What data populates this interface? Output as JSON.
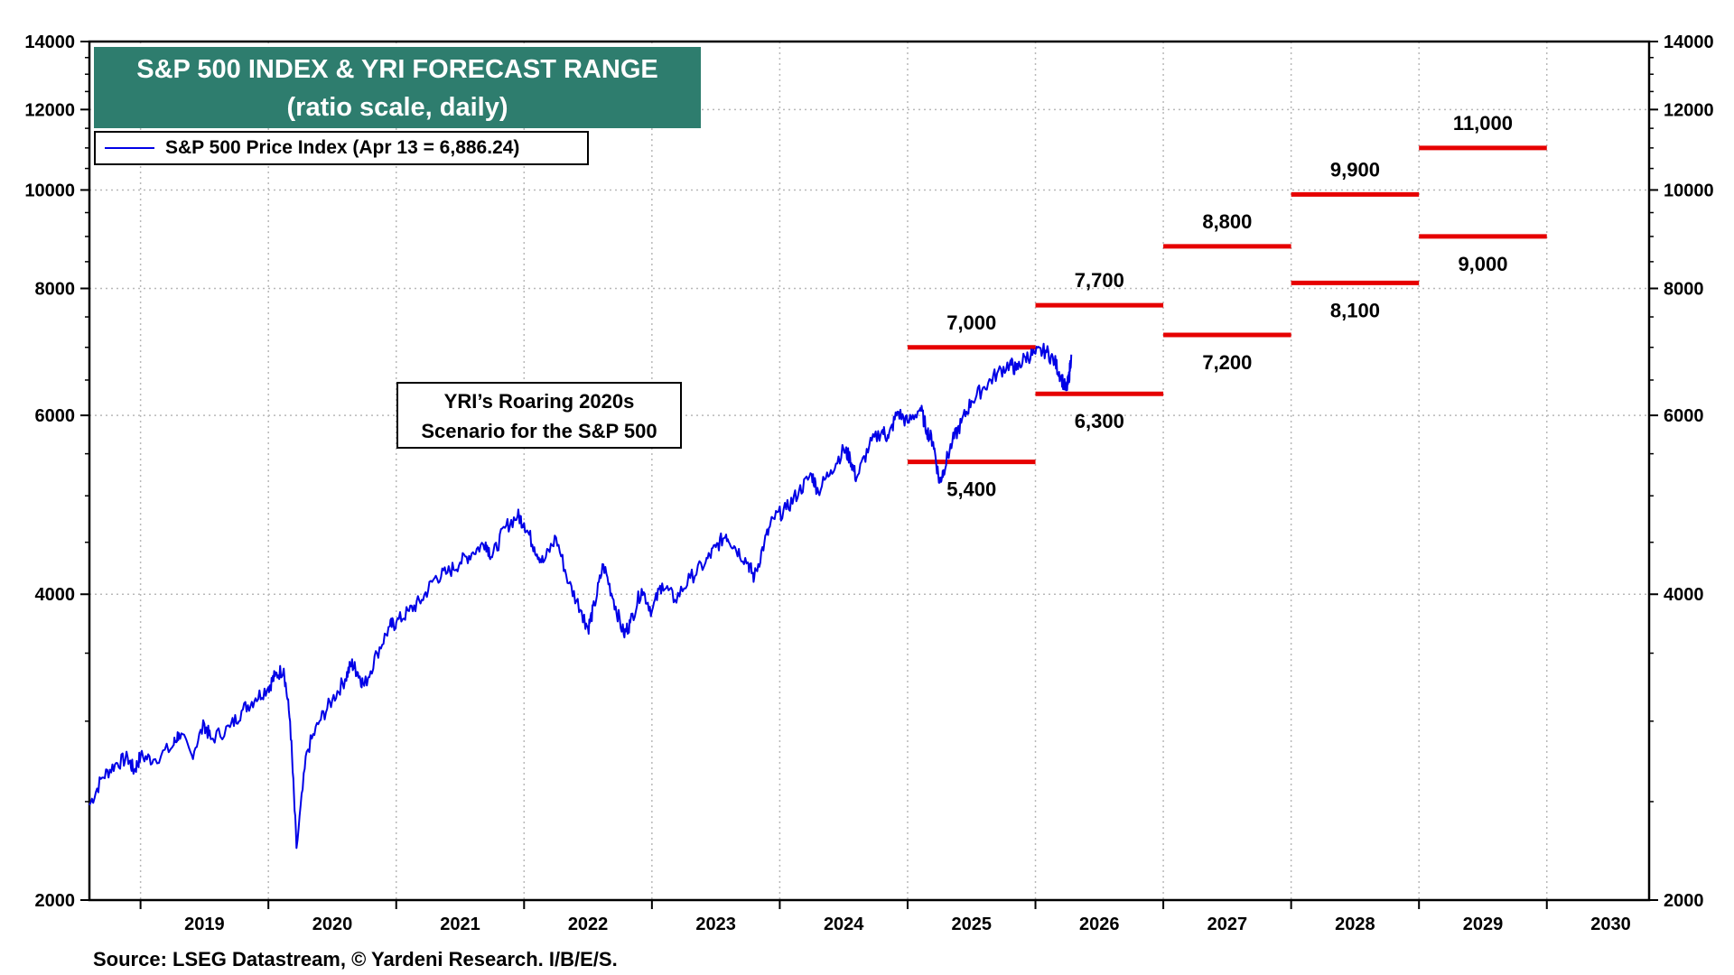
{
  "chart_data": {
    "type": "line",
    "title": "S&P 500 INDEX & YRI FORECAST RANGE",
    "subtitle": "(ratio scale, daily)",
    "legend": [
      {
        "name": "S&P 500 Price Index (Apr 13 = 6,886.24)",
        "color": "#0000e6"
      }
    ],
    "legend_position": "top-left",
    "y_scale": "log",
    "ylim": [
      2000,
      14000
    ],
    "y_ticks": [
      2000,
      4000,
      6000,
      8000,
      10000,
      12000,
      14000
    ],
    "y_tick_labels": [
      "2000",
      "4000",
      "6000",
      "8000",
      "10000",
      "12000",
      "14000"
    ],
    "xlim": [
      2018.6,
      2030.8
    ],
    "x_ticks": [
      2019,
      2020,
      2021,
      2022,
      2023,
      2024,
      2025,
      2026,
      2027,
      2028,
      2029,
      2030
    ],
    "x_tick_labels": [
      "2019",
      "2020",
      "2021",
      "2022",
      "2023",
      "2024",
      "2025",
      "2026",
      "2027",
      "2028",
      "2029",
      "2030"
    ],
    "grid": true,
    "series": [
      {
        "name": "S&P 500 Price Index",
        "color": "#0000e6",
        "points": [
          [
            2018.6,
            2480
          ],
          [
            2018.7,
            2640
          ],
          [
            2018.8,
            2720
          ],
          [
            2018.9,
            2760
          ],
          [
            2018.95,
            2680
          ],
          [
            2019.0,
            2770
          ],
          [
            2019.1,
            2750
          ],
          [
            2019.25,
            2830
          ],
          [
            2019.3,
            2920
          ],
          [
            2019.4,
            2780
          ],
          [
            2019.5,
            2980
          ],
          [
            2019.55,
            2880
          ],
          [
            2019.7,
            2960
          ],
          [
            2019.8,
            3080
          ],
          [
            2019.9,
            3160
          ],
          [
            2020.0,
            3240
          ],
          [
            2020.05,
            3320
          ],
          [
            2020.12,
            3380
          ],
          [
            2020.17,
            3000
          ],
          [
            2020.22,
            2250
          ],
          [
            2020.3,
            2800
          ],
          [
            2020.4,
            3000
          ],
          [
            2020.5,
            3150
          ],
          [
            2020.6,
            3300
          ],
          [
            2020.65,
            3420
          ],
          [
            2020.7,
            3350
          ],
          [
            2020.75,
            3250
          ],
          [
            2020.85,
            3500
          ],
          [
            2020.95,
            3720
          ],
          [
            2021.0,
            3750
          ],
          [
            2021.1,
            3850
          ],
          [
            2021.2,
            3950
          ],
          [
            2021.3,
            4150
          ],
          [
            2021.4,
            4200
          ],
          [
            2021.5,
            4300
          ],
          [
            2021.6,
            4400
          ],
          [
            2021.7,
            4500
          ],
          [
            2021.75,
            4350
          ],
          [
            2021.85,
            4650
          ],
          [
            2021.95,
            4780
          ],
          [
            2022.0,
            4700
          ],
          [
            2022.08,
            4450
          ],
          [
            2022.15,
            4300
          ],
          [
            2022.25,
            4550
          ],
          [
            2022.35,
            4100
          ],
          [
            2022.45,
            3850
          ],
          [
            2022.5,
            3700
          ],
          [
            2022.55,
            3900
          ],
          [
            2022.62,
            4280
          ],
          [
            2022.7,
            3950
          ],
          [
            2022.78,
            3650
          ],
          [
            2022.83,
            3750
          ],
          [
            2022.92,
            4050
          ],
          [
            2023.0,
            3850
          ],
          [
            2023.08,
            4100
          ],
          [
            2023.18,
            3950
          ],
          [
            2023.3,
            4150
          ],
          [
            2023.42,
            4300
          ],
          [
            2023.5,
            4450
          ],
          [
            2023.58,
            4580
          ],
          [
            2023.65,
            4450
          ],
          [
            2023.75,
            4300
          ],
          [
            2023.8,
            4150
          ],
          [
            2023.88,
            4500
          ],
          [
            2023.95,
            4750
          ],
          [
            2024.05,
            4850
          ],
          [
            2024.15,
            5050
          ],
          [
            2024.25,
            5250
          ],
          [
            2024.3,
            5050
          ],
          [
            2024.4,
            5300
          ],
          [
            2024.5,
            5550
          ],
          [
            2024.55,
            5450
          ],
          [
            2024.6,
            5200
          ],
          [
            2024.7,
            5600
          ],
          [
            2024.8,
            5800
          ],
          [
            2024.85,
            5700
          ],
          [
            2024.92,
            6050
          ],
          [
            2025.0,
            5900
          ],
          [
            2025.1,
            6100
          ],
          [
            2025.15,
            5800
          ],
          [
            2025.2,
            5650
          ],
          [
            2025.25,
            5150
          ],
          [
            2025.28,
            5300
          ],
          [
            2025.35,
            5650
          ],
          [
            2025.42,
            5900
          ],
          [
            2025.5,
            6200
          ],
          [
            2025.6,
            6400
          ],
          [
            2025.7,
            6600
          ],
          [
            2025.8,
            6750
          ],
          [
            2025.85,
            6650
          ],
          [
            2025.92,
            6850
          ],
          [
            2026.0,
            6900
          ],
          [
            2026.08,
            6950
          ],
          [
            2026.15,
            6780
          ],
          [
            2026.2,
            6550
          ],
          [
            2026.24,
            6350
          ],
          [
            2026.26,
            6500
          ],
          [
            2026.28,
            6886
          ]
        ]
      }
    ],
    "forecast_ranges": [
      {
        "year": 2025,
        "high": 7000,
        "low": 5400,
        "high_label": "7,000",
        "low_label": "5,400"
      },
      {
        "year": 2026,
        "high": 7700,
        "low": 6300,
        "high_label": "7,700",
        "low_label": "6,300"
      },
      {
        "year": 2027,
        "high": 8800,
        "low": 7200,
        "high_label": "8,800",
        "low_label": "7,200"
      },
      {
        "year": 2028,
        "high": 9900,
        "low": 8100,
        "high_label": "9,900",
        "low_label": "8,100"
      },
      {
        "year": 2029,
        "high": 11000,
        "low": 9000,
        "high_label": "11,000",
        "low_label": "9,000"
      }
    ],
    "forecast_color": "#e60000",
    "annotation": "YRI’s Roaring 2020s Scenario for the S&P 500",
    "annotation_lines": [
      "YRI’s Roaring 2020s",
      "Scenario for the S&P 500"
    ]
  },
  "header": {
    "title": "S&P 500 INDEX & YRI FORECAST RANGE",
    "subtitle": "(ratio scale, daily)"
  },
  "legend": {
    "label": "S&P 500 Price Index (Apr 13 = 6,886.24)"
  },
  "scenario": {
    "line1": "YRI’s Roaring 2020s",
    "line2": "Scenario for the S&P 500"
  },
  "footer": {
    "source": "Source: LSEG Datastream, © Yardeni Research. I/B/E/S."
  }
}
